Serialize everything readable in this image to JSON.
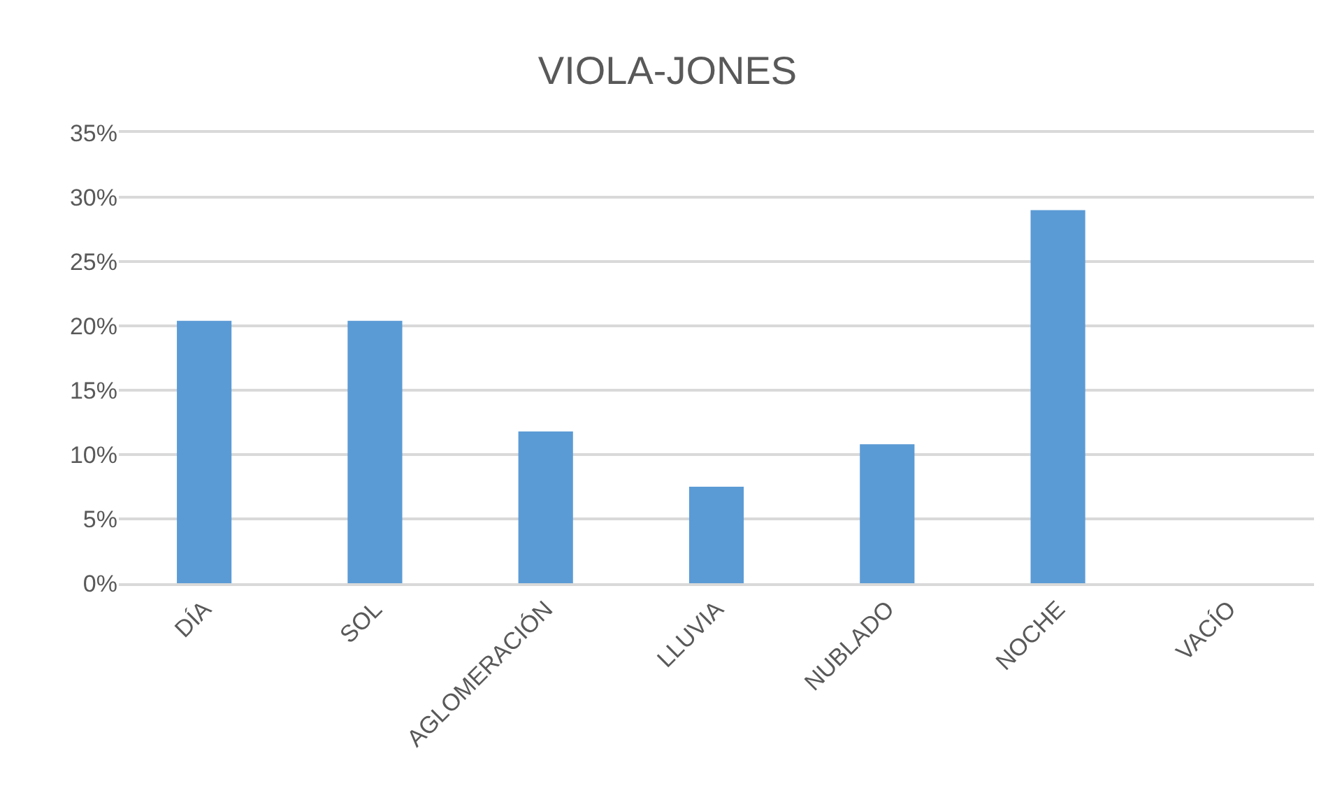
{
  "chart_data": {
    "type": "bar",
    "title": "VIOLA-JONES",
    "categories": [
      "DÍA",
      "SOL",
      "AGLOMERACIÓN",
      "LLUVIA",
      "NUBLADO",
      "NOCHE",
      "VACÍO"
    ],
    "values": [
      20.4,
      20.4,
      11.8,
      7.5,
      10.8,
      29.0,
      0
    ],
    "color": "#5b9bd5",
    "ylim": [
      0,
      35
    ],
    "yticks": [
      {
        "value": 0,
        "label": "0%"
      },
      {
        "value": 5,
        "label": "5%"
      },
      {
        "value": 10,
        "label": "10%"
      },
      {
        "value": 15,
        "label": "15%"
      },
      {
        "value": 20,
        "label": "20%"
      },
      {
        "value": 25,
        "label": "25%"
      },
      {
        "value": 30,
        "label": "30%"
      },
      {
        "value": 35,
        "label": "35%"
      }
    ],
    "grid": "y"
  }
}
